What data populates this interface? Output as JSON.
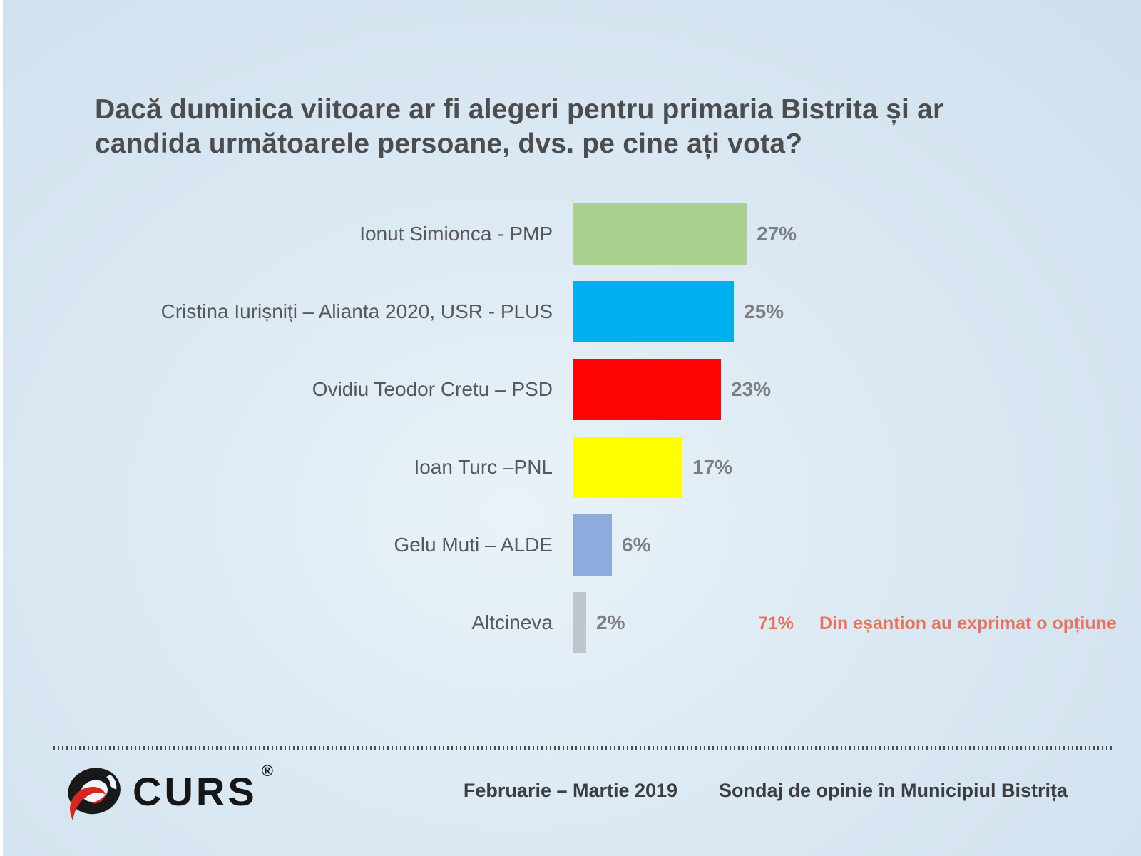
{
  "title": "Dacă duminica viitoare ar fi alegeri pentru primaria Bistrita și ar\ncandida următoarele persoane, dvs. pe cine ați vota?",
  "chart_data": {
    "type": "bar",
    "orientation": "horizontal",
    "categories": [
      "Ionut Simionca - PMP",
      "Cristina Iurișniți – Alianta 2020, USR - PLUS",
      "Ovidiu Teodor Cretu – PSD",
      "Ioan Turc –PNL",
      "Gelu Muti – ALDE",
      "Altcineva"
    ],
    "values": [
      27,
      25,
      23,
      17,
      6,
      2
    ],
    "value_labels": [
      "27%",
      "25%",
      "23%",
      "17%",
      "6%",
      "2%"
    ],
    "bar_colors": [
      "#a9d08e",
      "#00b0f0",
      "#fe0505",
      "#ffff00",
      "#8faadc",
      "#bfc5cc"
    ],
    "title": "Dacă duminica viitoare ar fi alegeri pentru primaria Bistrita și ar candida următoarele persoane, dvs. pe cine ați vota?",
    "xlabel": "",
    "ylabel": "",
    "xlim": [
      0,
      30
    ],
    "grid": false,
    "legend": false,
    "value_label_position": "outside-end"
  },
  "annotation": {
    "pct": "71%",
    "text": "Din eșantion au exprimat o opțiune",
    "color": "#e8735c"
  },
  "footer": {
    "brand": "CURS",
    "registered": "®",
    "period": "Februarie – Martie 2019",
    "note": "Sondaj de opinie în Municipiul Bistrița"
  },
  "colors": {
    "background_center": "#e9f2f8",
    "background_edge": "#cfe0ed",
    "title_text": "#4c4d4f",
    "category_text": "#57585a",
    "value_text": "#7d7f82",
    "annotation_text": "#e8735c",
    "footer_text": "#3c3d3f",
    "logo_red": "#d6271f",
    "logo_black": "#191919"
  }
}
